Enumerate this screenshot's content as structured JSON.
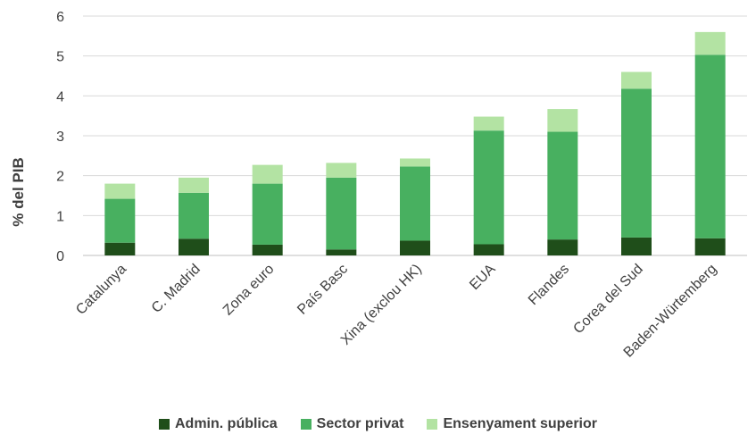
{
  "chart_data": {
    "type": "bar",
    "stacked": true,
    "title": "",
    "xlabel": "",
    "ylabel": "% del PIB",
    "ylim": [
      0,
      6
    ],
    "yticks": [
      0,
      1,
      2,
      3,
      4,
      5,
      6
    ],
    "grid": true,
    "legend_position": "bottom",
    "categories": [
      "Catalunya",
      "C. Madrid",
      "Zona euro",
      "País Basc",
      "Xina (exclou HK)",
      "EUA",
      "Flandes",
      "Corea del Sud",
      "Baden-Würtemberg"
    ],
    "series": [
      {
        "name": "Admin. pública",
        "color": "#1f4e1a",
        "values": [
          0.32,
          0.42,
          0.27,
          0.15,
          0.37,
          0.28,
          0.4,
          0.45,
          0.43
        ]
      },
      {
        "name": "Sector privat",
        "color": "#48b060",
        "values": [
          1.1,
          1.15,
          1.53,
          1.8,
          1.86,
          2.85,
          2.7,
          3.73,
          4.6
        ]
      },
      {
        "name": "Ensenyament superior",
        "color": "#b3e3a3",
        "values": [
          0.38,
          0.38,
          0.47,
          0.37,
          0.2,
          0.35,
          0.57,
          0.42,
          0.57
        ]
      }
    ]
  }
}
